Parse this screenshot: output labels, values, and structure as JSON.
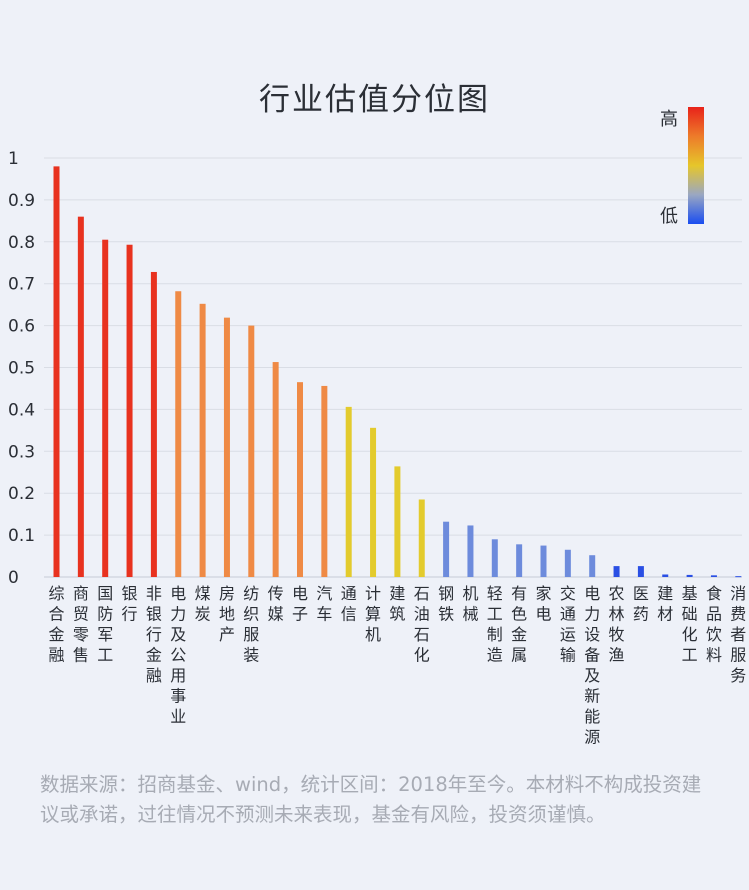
{
  "chart_data": {
    "type": "bar",
    "title": "行业估值分位图",
    "xlabel": "",
    "ylabel": "",
    "ylim": [
      0,
      1
    ],
    "yticks": [
      "0",
      "0.1",
      "0.2",
      "0.3",
      "0.4",
      "0.5",
      "0.6",
      "0.7",
      "0.8",
      "0.9",
      "1"
    ],
    "grid": true,
    "categories": [
      "综合金融",
      "商贸零售",
      "国防军工",
      "银行",
      "非银行金融",
      "电力及公用事业",
      "煤炭",
      "房地产",
      "纺织服装",
      "传媒",
      "电子",
      "汽车",
      "通信",
      "计算机",
      "建筑",
      "石油石化",
      "钢铁",
      "机械",
      "轻工制造",
      "有色金属",
      "家电",
      "交通运输",
      "电力设备及新能源",
      "农林牧渔",
      "医药",
      "建材",
      "基础化工",
      "食品饮料",
      "消费者服务"
    ],
    "values": [
      0.98,
      0.86,
      0.805,
      0.793,
      0.728,
      0.682,
      0.652,
      0.619,
      0.6,
      0.513,
      0.465,
      0.456,
      0.406,
      0.356,
      0.264,
      0.185,
      0.132,
      0.123,
      0.09,
      0.078,
      0.075,
      0.065,
      0.052,
      0.026,
      0.026,
      0.006,
      0.005,
      0.004,
      0.002
    ],
    "colors": [
      "#e8321f",
      "#e8321f",
      "#e8321f",
      "#e8321f",
      "#e8321f",
      "#ef8a45",
      "#ef8a45",
      "#ef8a45",
      "#ef8a45",
      "#ef8a45",
      "#ef8a45",
      "#ef8a45",
      "#e3cb2d",
      "#e3cb2d",
      "#e3cb2d",
      "#e3cb2d",
      "#6d8bdc",
      "#6d8bdc",
      "#6d8bdc",
      "#6d8bdc",
      "#6d8bdc",
      "#6d8bdc",
      "#6d8bdc",
      "#2a4fe4",
      "#2a4fe4",
      "#2a4fe4",
      "#2a4fe4",
      "#2a4fe4",
      "#2a4fe4"
    ],
    "legend": {
      "type": "gradient colorbar",
      "placement": "top-right",
      "high_label": "高",
      "low_label": "低",
      "colors": [
        "#e8231a",
        "#ed7b2a",
        "#e6c62a",
        "#9aa7c2",
        "#1a4df0"
      ]
    }
  },
  "footnote": "数据来源：招商基金、wind，统计区间：2018年至今。本材料不构成投资建议或承诺，过往情况不预测未来表现，基金有风险，投资须谨慎。"
}
